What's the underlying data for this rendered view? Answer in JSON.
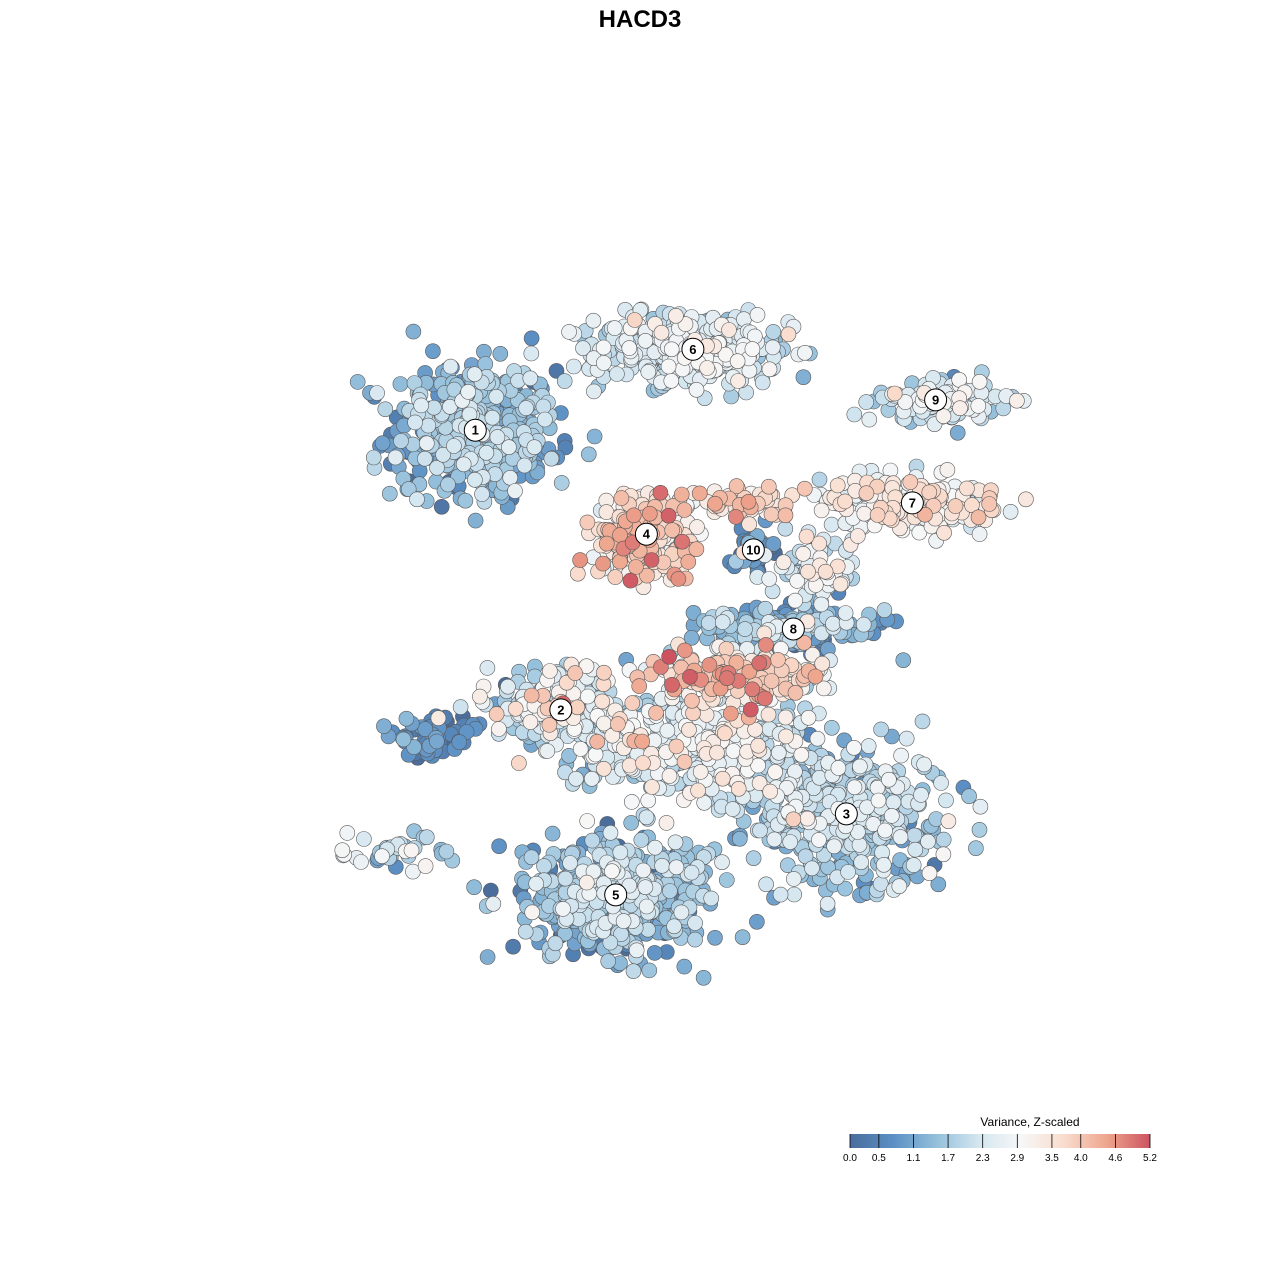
{
  "chart_data": {
    "type": "scatter",
    "title": "HACD3",
    "xlabel": "",
    "ylabel": "",
    "grid": false,
    "legend": {
      "title": "Variance, Z-scaled",
      "placement": "bottom-right",
      "min": 0.0,
      "max": 5.2,
      "ticks": [
        0.0,
        0.5,
        1.1,
        1.7,
        2.3,
        2.9,
        3.5,
        4.0,
        4.6,
        5.2
      ],
      "tick_labels": [
        "0.0",
        "0.5",
        "1.1",
        "1.7",
        "2.3",
        "2.9",
        "3.5",
        "4.0",
        "4.6",
        "5.2"
      ]
    },
    "colormap": [
      "#4a6d9c",
      "#5b8fc4",
      "#93bfdb",
      "#d4e6f0",
      "#f7f7f7",
      "#f9dccd",
      "#eea58d",
      "#cd5360"
    ],
    "marker_edge_color": "#5a5a5a",
    "x_range": [
      -50,
      50
    ],
    "y_range": [
      -50,
      50
    ],
    "clusters": [
      {
        "label": "1",
        "x": -20.4,
        "y": 22.8,
        "spread": [
          8.0,
          6.5
        ],
        "count": 520,
        "mean": 1.35,
        "sd": 0.55
      },
      {
        "label": "6",
        "x": 3.0,
        "y": 31.6,
        "spread": [
          9.5,
          3.5
        ],
        "count": 430,
        "mean": 2.25,
        "sd": 0.45
      },
      {
        "label": "9",
        "x": 29.1,
        "y": 26.1,
        "spread": [
          6.0,
          2.2
        ],
        "count": 120,
        "mean": 2.3,
        "sd": 0.6
      },
      {
        "label": "7",
        "x": 26.6,
        "y": 14.9,
        "spread": [
          9.0,
          2.5
        ],
        "count": 210,
        "mean": 2.95,
        "sd": 0.55
      },
      {
        "label": "4",
        "x": -2.0,
        "y": 11.5,
        "spread": [
          5.0,
          4.5
        ],
        "count": 240,
        "mean": 3.55,
        "sd": 0.55
      },
      {
        "label": "10",
        "x": 9.5,
        "y": 9.8,
        "spread": [
          1.8,
          2.0
        ],
        "count": 45,
        "mean": 0.45,
        "sd": 0.35
      },
      {
        "label": "8",
        "x": 13.8,
        "y": 1.2,
        "spread": [
          9.0,
          2.0
        ],
        "count": 200,
        "mean": 1.2,
        "sd": 0.6
      },
      {
        "label": "2",
        "x": -11.2,
        "y": -7.6,
        "spread": [
          7.0,
          3.5
        ],
        "count": 230,
        "mean": 2.2,
        "sd": 0.95
      },
      {
        "label": "3",
        "x": 19.5,
        "y": -18.9,
        "spread": [
          10.0,
          6.0
        ],
        "count": 470,
        "mean": 1.75,
        "sd": 0.55
      },
      {
        "label": "5",
        "x": -5.3,
        "y": -27.7,
        "spread": [
          9.0,
          6.0
        ],
        "count": 520,
        "mean": 1.45,
        "sd": 0.6
      }
    ],
    "groups": [
      {
        "x": 7.5,
        "y": -4.0,
        "spread": [
          8.0,
          2.6
        ],
        "count": 260,
        "mean": 3.3,
        "sd": 0.9
      },
      {
        "x": 3.0,
        "y": -11.5,
        "spread": [
          13.0,
          4.5
        ],
        "count": 420,
        "mean": 2.35,
        "sd": 0.7
      },
      {
        "x": 16.0,
        "y": 7.5,
        "spread": [
          4.0,
          4.0
        ],
        "count": 70,
        "mean": 2.5,
        "sd": 0.7
      },
      {
        "x": 8.5,
        "y": 15.0,
        "spread": [
          5.5,
          1.5
        ],
        "count": 55,
        "mean": 3.6,
        "sd": 0.6
      },
      {
        "x": -29.0,
        "y": -23.0,
        "spread": [
          5.5,
          2.2
        ],
        "count": 40,
        "mean": 1.9,
        "sd": 0.7
      },
      {
        "x": -25.0,
        "y": -10.5,
        "spread": [
          4.5,
          2.2
        ],
        "count": 60,
        "mean": 0.55,
        "sd": 0.5
      }
    ],
    "cluster_label_style": {
      "fill": "#ffffff",
      "stroke": "#000000"
    }
  }
}
